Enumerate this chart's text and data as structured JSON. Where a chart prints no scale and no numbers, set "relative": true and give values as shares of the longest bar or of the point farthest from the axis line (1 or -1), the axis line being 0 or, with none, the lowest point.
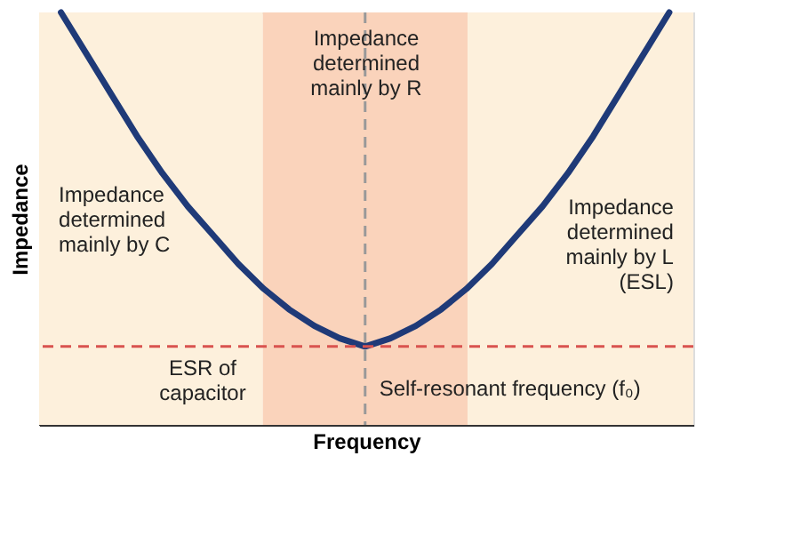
{
  "chart_data": {
    "type": "line",
    "relative": true,
    "xlabel": "Frequency",
    "ylabel": "Impedance",
    "tick_labels": false,
    "grid": false,
    "categories": [
      null,
      null,
      null,
      null,
      null,
      null,
      null,
      null,
      null,
      null,
      null,
      null,
      null,
      null,
      null,
      null,
      null,
      null,
      null,
      null,
      null,
      null,
      null,
      null,
      null
    ],
    "series": [
      {
        "color": "#1f3a78",
        "values": [
          1.0,
          0.9,
          0.8,
          0.7,
          0.61,
          0.53,
          0.46,
          0.39,
          0.33,
          0.28,
          0.24,
          0.21,
          0.19,
          0.21,
          0.24,
          0.28,
          0.33,
          0.39,
          0.46,
          0.53,
          0.61,
          0.7,
          0.8,
          0.9,
          1.0
        ]
      }
    ],
    "annotations": [
      "Impedance\ndetermined\nmainly by C",
      "Impedance\ndetermined\nmainly by R",
      "Impedance\ndetermined\nmainly by L\n(ESL)",
      "Self-resonant frequency (f₀)"
    ],
    "ref_lines": [
      {
        "axis": "y",
        "value": 0.19,
        "label": "ESR of\ncapacitor",
        "color": "#d9534f",
        "line_style": "dashed"
      }
    ]
  }
}
